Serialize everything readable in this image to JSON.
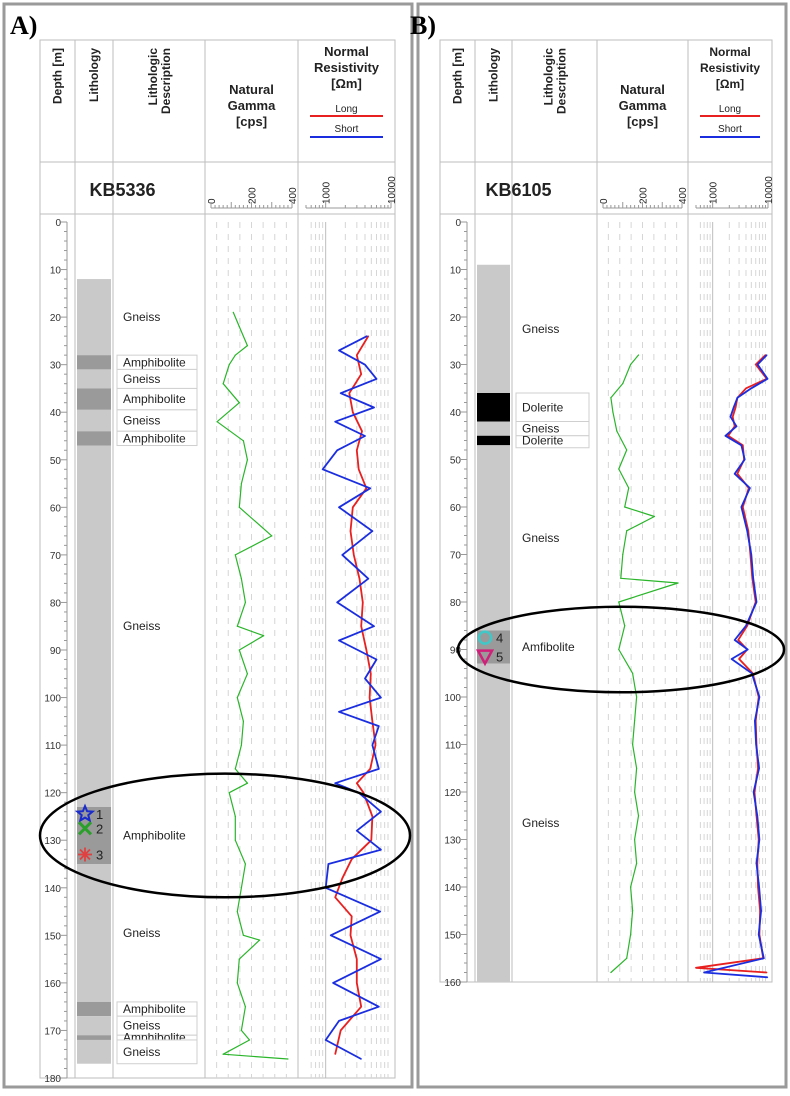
{
  "panels": [
    {
      "label": "A)",
      "well": "KB5336",
      "headers": {
        "depth": "Depth [m]",
        "lithology": "Lithology",
        "description": "Lithologic Description",
        "gamma": [
          "Natural",
          "Gamma",
          "[cps]"
        ],
        "resistivity": [
          "Normal",
          "Resistivity",
          "[Ωm]"
        ],
        "legend_long": "Long",
        "legend_short": "Short"
      },
      "gamma_ticks": [
        "0",
        "200",
        "400"
      ],
      "res_ticks": [
        "1000",
        "10000"
      ],
      "depth_ticks": [
        "0",
        "10",
        "20",
        "30",
        "40",
        "50",
        "60",
        "70",
        "80",
        "90",
        "100",
        "110",
        "120",
        "130",
        "140",
        "150",
        "160",
        "170",
        "180"
      ],
      "units": [
        {
          "top": 12,
          "bottom": 28,
          "label": "Gneiss",
          "shade": "light"
        },
        {
          "top": 28,
          "bottom": 31,
          "label": "Amphibolite",
          "shade": "dark"
        },
        {
          "top": 31,
          "bottom": 35,
          "label": "Gneiss",
          "shade": "light"
        },
        {
          "top": 35,
          "bottom": 39.5,
          "label": "Amphibolite",
          "shade": "dark"
        },
        {
          "top": 39.5,
          "bottom": 44,
          "label": "Gneiss",
          "shade": "light"
        },
        {
          "top": 44,
          "bottom": 47,
          "label": "Amphibolite",
          "shade": "dark"
        },
        {
          "top": 47,
          "bottom": 123,
          "label": "Gneiss",
          "shade": "light"
        },
        {
          "top": 123,
          "bottom": 135,
          "label": "Amphibolite",
          "shade": "dark"
        },
        {
          "top": 135,
          "bottom": 164,
          "label": "Gneiss",
          "shade": "light"
        },
        {
          "top": 164,
          "bottom": 167,
          "label": "Amphibolite",
          "shade": "dark"
        },
        {
          "top": 167,
          "bottom": 171,
          "label": "Gneiss",
          "shade": "light"
        },
        {
          "top": 171,
          "bottom": 172,
          "label": "Amphibolite",
          "shade": "dark"
        },
        {
          "top": 172,
          "bottom": 177,
          "label": "Gneiss",
          "shade": "light"
        }
      ],
      "markers": [
        {
          "id": "1",
          "shape": "star",
          "depth": 124.5,
          "color": "#1a2ccc"
        },
        {
          "id": "2",
          "shape": "cross",
          "depth": 127.5,
          "color": "#2aa02a"
        },
        {
          "id": "3",
          "shape": "asterisk",
          "depth": 133,
          "color": "#e04040"
        }
      ],
      "ellipse_depth": [
        116,
        142
      ]
    },
    {
      "label": "B)",
      "well": "KB6105",
      "headers": {
        "depth": "Depth [m]",
        "lithology": "Lithology",
        "description": "Lithologic Description",
        "gamma": [
          "Natural",
          "Gamma",
          "[cps]"
        ],
        "resistivity": [
          "Normal",
          "Resistivity",
          "[Ωm]"
        ],
        "legend_long": "Long",
        "legend_short": "Short"
      },
      "gamma_ticks": [
        "0",
        "200",
        "400"
      ],
      "res_ticks": [
        "1000",
        "10000"
      ],
      "depth_ticks": [
        "0",
        "10",
        "20",
        "30",
        "40",
        "50",
        "60",
        "70",
        "80",
        "90",
        "100",
        "110",
        "120",
        "130",
        "140",
        "150",
        "160"
      ],
      "units": [
        {
          "top": 9,
          "bottom": 36,
          "label": "Gneiss",
          "shade": "light"
        },
        {
          "top": 36,
          "bottom": 42,
          "label": "Dolerite",
          "shade": "black"
        },
        {
          "top": 42,
          "bottom": 45,
          "label": "Gneiss",
          "shade": "light"
        },
        {
          "top": 45,
          "bottom": 47,
          "label": "Dolerite",
          "shade": "black"
        },
        {
          "top": 47,
          "bottom": 86,
          "label": "Gneiss",
          "shade": "light"
        },
        {
          "top": 86,
          "bottom": 93,
          "label": "Amfibolite",
          "shade": "dark"
        },
        {
          "top": 93,
          "bottom": 160,
          "label": "Gneiss",
          "shade": "light"
        }
      ],
      "markers": [
        {
          "id": "4",
          "shape": "circle",
          "depth": 87.5,
          "color": "#40c8c8"
        },
        {
          "id": "5",
          "shape": "triangle",
          "depth": 91.5,
          "color": "#d0207a"
        }
      ],
      "ellipse_depth": [
        81,
        99
      ]
    }
  ],
  "curve_colors": {
    "gamma": "#2ab52a",
    "long": "#e82020",
    "short": "#1a2ee0"
  },
  "chart_data": [
    {
      "type": "line",
      "title": "KB5336",
      "x_gamma_range": [
        0,
        400
      ],
      "x_resistivity_range": [
        500,
        10000
      ],
      "y_depth_range": [
        0,
        180
      ],
      "series": [
        {
          "name": "Natural Gamma",
          "x_depth": [
            19,
            22,
            26,
            28,
            30,
            34,
            38,
            42,
            46,
            50,
            55,
            60,
            66,
            70,
            75,
            80,
            85,
            87,
            90,
            95,
            100,
            105,
            110,
            115,
            118,
            120,
            125,
            130,
            135,
            140,
            145,
            150,
            151,
            155,
            160,
            165,
            170,
            172,
            175,
            176
          ],
          "values": [
            110,
            140,
            180,
            120,
            90,
            60,
            140,
            30,
            160,
            180,
            150,
            140,
            300,
            120,
            150,
            170,
            130,
            260,
            140,
            180,
            130,
            160,
            150,
            120,
            180,
            90,
            120,
            120,
            170,
            150,
            130,
            160,
            240,
            140,
            130,
            170,
            150,
            190,
            60,
            380
          ]
        },
        {
          "name": "Long",
          "x_depth": [
            24,
            28,
            32,
            36,
            40,
            44,
            48,
            52,
            56,
            60,
            65,
            70,
            75,
            80,
            85,
            90,
            95,
            100,
            105,
            110,
            115,
            118,
            120,
            125,
            130,
            134,
            138,
            142,
            146,
            150,
            155,
            160,
            165,
            170,
            175
          ],
          "values": [
            4500,
            3000,
            3500,
            2300,
            2600,
            3600,
            3000,
            3200,
            4200,
            2600,
            2400,
            2700,
            3300,
            3700,
            3500,
            4200,
            4900,
            4700,
            5200,
            5800,
            4800,
            3000,
            3800,
            5200,
            5000,
            2500,
            1800,
            1400,
            2500,
            2400,
            3000,
            3000,
            3500,
            1700,
            1400
          ]
        },
        {
          "name": "Short",
          "x_depth": [
            24,
            27,
            30,
            33,
            36,
            39,
            42,
            45,
            48,
            52,
            56,
            60,
            65,
            70,
            75,
            80,
            85,
            88,
            92,
            96,
            100,
            103,
            106,
            110,
            115,
            118,
            120,
            124,
            128,
            132,
            135,
            140,
            145,
            150,
            155,
            160,
            165,
            168,
            172,
            176
          ],
          "values": [
            4300,
            1600,
            4000,
            6000,
            1700,
            5500,
            1400,
            4000,
            1500,
            900,
            4800,
            1600,
            5200,
            1800,
            4500,
            1500,
            5500,
            1600,
            6000,
            4000,
            7000,
            1600,
            6500,
            5200,
            6500,
            1400,
            3200,
            7000,
            3000,
            7000,
            1100,
            1000,
            6800,
            1200,
            7000,
            1300,
            6500,
            1600,
            1000,
            3500
          ]
        }
      ]
    },
    {
      "type": "line",
      "title": "KB6105",
      "x_gamma_range": [
        0,
        400
      ],
      "x_resistivity_range": [
        500,
        10000
      ],
      "y_depth_range": [
        0,
        160
      ],
      "series": [
        {
          "name": "Natural Gamma",
          "x_depth": [
            28,
            30,
            34,
            37,
            40,
            44,
            48,
            52,
            56,
            60,
            62,
            65,
            70,
            75,
            76,
            80,
            85,
            90,
            95,
            100,
            105,
            110,
            115,
            120,
            125,
            130,
            135,
            140,
            145,
            150,
            155,
            158
          ],
          "values": [
            180,
            140,
            100,
            40,
            50,
            70,
            120,
            80,
            130,
            110,
            260,
            120,
            100,
            90,
            380,
            80,
            110,
            80,
            150,
            170,
            160,
            150,
            170,
            160,
            180,
            160,
            170,
            140,
            150,
            140,
            120,
            40
          ]
        },
        {
          "name": "Long",
          "x_depth": [
            28,
            30,
            33,
            35,
            37,
            39,
            41,
            43,
            45,
            47,
            50,
            53,
            56,
            60,
            65,
            70,
            75,
            80,
            85,
            88,
            90,
            92,
            95,
            100,
            105,
            110,
            115,
            120,
            125,
            130,
            135,
            140,
            145,
            150,
            155,
            157,
            158
          ],
          "values": [
            9000,
            6000,
            9500,
            4000,
            2800,
            2600,
            2300,
            2500,
            1900,
            3500,
            3700,
            2800,
            4500,
            3500,
            4400,
            4800,
            5200,
            6000,
            4200,
            2900,
            4200,
            3000,
            5300,
            6800,
            6000,
            6200,
            6600,
            5700,
            6200,
            6800,
            6400,
            6600,
            7200,
            7000,
            8200,
            500,
            9500
          ]
        },
        {
          "name": "Short",
          "x_depth": [
            28,
            30,
            33,
            35,
            37,
            39,
            41,
            43,
            45,
            47,
            50,
            53,
            56,
            60,
            65,
            70,
            75,
            80,
            85,
            88,
            90,
            92,
            95,
            100,
            105,
            110,
            115,
            120,
            125,
            130,
            135,
            140,
            145,
            150,
            155,
            158,
            159
          ],
          "values": [
            9500,
            6500,
            9800,
            5000,
            2800,
            2400,
            2100,
            2700,
            1700,
            3300,
            3800,
            2500,
            4700,
            3300,
            4200,
            5000,
            5400,
            6200,
            4000,
            2500,
            4300,
            2200,
            5100,
            7000,
            5800,
            6100,
            6900,
            5500,
            6400,
            7000,
            6200,
            6900,
            7500,
            6800,
            8400,
            700,
            9800
          ]
        }
      ]
    }
  ]
}
